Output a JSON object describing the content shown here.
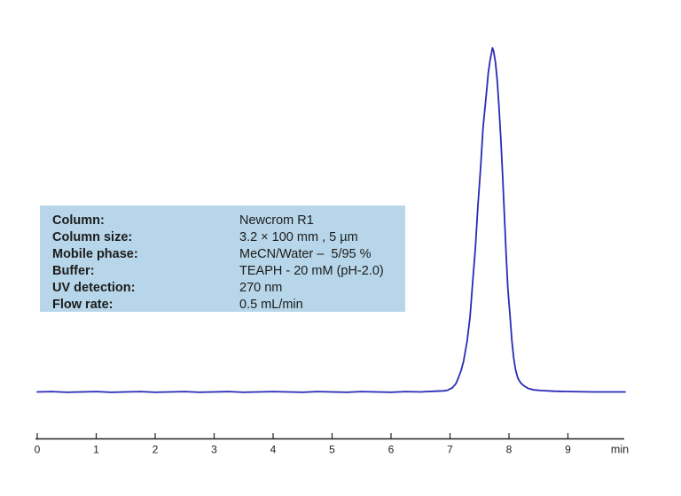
{
  "chart_data": {
    "type": "line",
    "title": "",
    "xlabel": "min",
    "ylabel": "",
    "xlim": [
      0,
      10
    ],
    "x_ticks": [
      0,
      1,
      2,
      3,
      4,
      5,
      6,
      7,
      8,
      9
    ],
    "x_unit_label": "min",
    "grid": false,
    "legend": "none",
    "peak": {
      "retention_time_min": 7.72,
      "relative_height": 1.0
    },
    "series": [
      {
        "name": "chromatogram-trace",
        "points": [
          [
            0.0,
            0.0
          ],
          [
            0.25,
            0.001
          ],
          [
            0.5,
            -0.001
          ],
          [
            0.75,
            0.0
          ],
          [
            1.0,
            0.001
          ],
          [
            1.25,
            -0.001
          ],
          [
            1.5,
            0.0
          ],
          [
            1.75,
            0.001
          ],
          [
            2.0,
            -0.001
          ],
          [
            2.25,
            0.0
          ],
          [
            2.5,
            0.001
          ],
          [
            2.75,
            -0.001
          ],
          [
            3.0,
            0.0
          ],
          [
            3.25,
            0.001
          ],
          [
            3.5,
            -0.001
          ],
          [
            3.75,
            0.0
          ],
          [
            4.0,
            0.001
          ],
          [
            4.25,
            0.0
          ],
          [
            4.5,
            -0.001
          ],
          [
            4.75,
            0.001
          ],
          [
            5.0,
            0.0
          ],
          [
            5.25,
            -0.001
          ],
          [
            5.5,
            0.001
          ],
          [
            5.75,
            0.0
          ],
          [
            6.0,
            -0.001
          ],
          [
            6.25,
            0.001
          ],
          [
            6.5,
            0.0
          ],
          [
            6.6,
            0.001
          ],
          [
            6.75,
            0.002
          ],
          [
            6.89,
            0.003
          ],
          [
            6.96,
            0.005
          ],
          [
            7.04,
            0.012
          ],
          [
            7.1,
            0.024
          ],
          [
            7.14,
            0.04
          ],
          [
            7.19,
            0.063
          ],
          [
            7.23,
            0.089
          ],
          [
            7.29,
            0.148
          ],
          [
            7.34,
            0.218
          ],
          [
            7.38,
            0.31
          ],
          [
            7.43,
            0.418
          ],
          [
            7.47,
            0.534
          ],
          [
            7.52,
            0.655
          ],
          [
            7.56,
            0.766
          ],
          [
            7.61,
            0.856
          ],
          [
            7.65,
            0.928
          ],
          [
            7.68,
            0.964
          ],
          [
            7.72,
            1.0
          ],
          [
            7.74,
            0.99
          ],
          [
            7.77,
            0.959
          ],
          [
            7.8,
            0.907
          ],
          [
            7.83,
            0.83
          ],
          [
            7.86,
            0.74
          ],
          [
            7.89,
            0.637
          ],
          [
            7.92,
            0.521
          ],
          [
            7.95,
            0.405
          ],
          [
            7.98,
            0.302
          ],
          [
            8.02,
            0.218
          ],
          [
            8.05,
            0.148
          ],
          [
            8.08,
            0.099
          ],
          [
            8.11,
            0.066
          ],
          [
            8.15,
            0.04
          ],
          [
            8.2,
            0.026
          ],
          [
            8.26,
            0.017
          ],
          [
            8.33,
            0.01
          ],
          [
            8.42,
            0.006
          ],
          [
            8.54,
            0.004
          ],
          [
            8.77,
            0.002
          ],
          [
            9.07,
            0.001
          ],
          [
            9.44,
            0.0
          ],
          [
            9.7,
            0.0
          ],
          [
            9.97,
            0.0
          ]
        ]
      }
    ]
  },
  "method_info": {
    "rows": [
      {
        "label": "Column:",
        "value": "Newcrom R1"
      },
      {
        "label": "Column size:",
        "value": "3.2 × 100 mm , 5 µm"
      },
      {
        "label": "Mobile phase:",
        "value": "MeCN/Water –  5/95 %"
      },
      {
        "label": "Buffer:",
        "value": "TEAPH - 20 mM (pH-2.0)"
      },
      {
        "label": "UV detection:",
        "value": "270 nm"
      },
      {
        "label": "Flow rate:",
        "value": "0.5 mL/min"
      }
    ]
  },
  "colors": {
    "trace": "#2a2ab8",
    "axis": "#222222",
    "info_box_bg": "#b7d6e9",
    "text": "#1c1c1c"
  }
}
